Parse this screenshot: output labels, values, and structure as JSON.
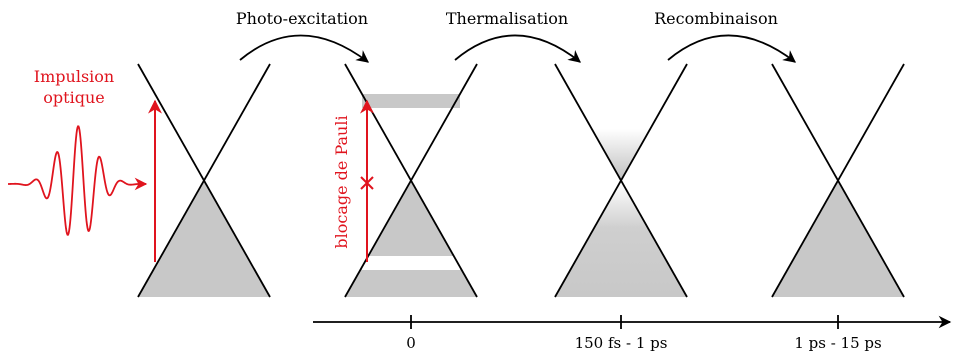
{
  "stages": {
    "photoexcitation_label": "Photo-excitation",
    "thermalisation_label": "Thermalisation",
    "recombinaison_label": "Recombinaison"
  },
  "pulse": {
    "label_line1": "Impulsion",
    "label_line2": "optique"
  },
  "pauli": {
    "label": "blocage de Pauli"
  },
  "timeline": {
    "ticks": [
      "0",
      "150 fs - 1 ps",
      "1 ps - 15 ps"
    ]
  },
  "colors": {
    "accent": "#e0141e",
    "fill": "#c8c8c8",
    "line": "#000000"
  }
}
